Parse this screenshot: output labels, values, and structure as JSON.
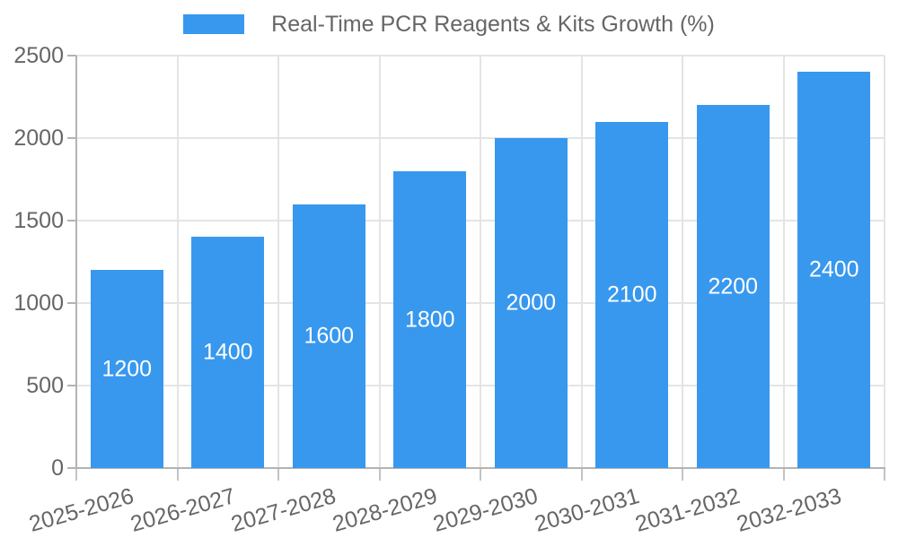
{
  "chart_data": {
    "type": "bar",
    "title": "Real-Time PCR Reagents & Kits Growth (%)",
    "legend_position": "top",
    "series_name": "Real-Time PCR Reagents & Kits Growth (%)",
    "categories": [
      "2025-2026",
      "2026-2027",
      "2027-2028",
      "2028-2029",
      "2029-2030",
      "2030-2031",
      "2031-2032",
      "2032-2033"
    ],
    "values": [
      1200,
      1400,
      1600,
      1800,
      2000,
      2100,
      2200,
      2400
    ],
    "xlabel": "",
    "ylabel": "",
    "ylim": [
      0,
      2500
    ],
    "yticks": [
      0,
      500,
      1000,
      1500,
      2000,
      2500
    ],
    "grid": true,
    "x_label_rotation_deg": -16,
    "style": {
      "bar_color": "#3898ee",
      "value_label_color": "#ffffff",
      "grid_color": "#e4e4e4",
      "axis_line_color": "#b3b3b3",
      "tick_color": "#c4c4c4",
      "text_color": "#666666",
      "background": "#ffffff"
    }
  }
}
